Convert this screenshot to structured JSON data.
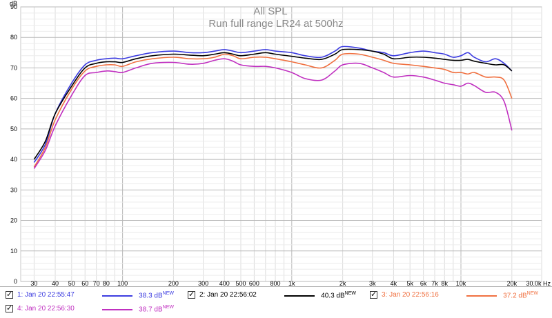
{
  "chart_data": {
    "type": "line",
    "title": "All SPL",
    "subtitle": "Run full range LR24 at 500hz",
    "ylabel": "dB",
    "xlabel": "Hz",
    "x_scale": "log",
    "xlim": [
      25,
      30000
    ],
    "ylim": [
      0,
      90
    ],
    "grid": true,
    "y_ticks": [
      "0",
      "10",
      "20",
      "30",
      "40",
      "50",
      "60",
      "70",
      "80",
      "90"
    ],
    "x_ticks": [
      {
        "v": 30,
        "label": "30"
      },
      {
        "v": 40,
        "label": "40"
      },
      {
        "v": 50,
        "label": "50"
      },
      {
        "v": 60,
        "label": "60"
      },
      {
        "v": 70,
        "label": "70"
      },
      {
        "v": 80,
        "label": "80"
      },
      {
        "v": 100,
        "label": "100"
      },
      {
        "v": 200,
        "label": "200"
      },
      {
        "v": 300,
        "label": "300"
      },
      {
        "v": 400,
        "label": "400"
      },
      {
        "v": 500,
        "label": "500"
      },
      {
        "v": 600,
        "label": "600"
      },
      {
        "v": 800,
        "label": "800"
      },
      {
        "v": 1000,
        "label": "1k"
      },
      {
        "v": 2000,
        "label": "2k"
      },
      {
        "v": 3000,
        "label": "3k"
      },
      {
        "v": 4000,
        "label": "4k"
      },
      {
        "v": 5000,
        "label": "5k"
      },
      {
        "v": 6000,
        "label": "6k"
      },
      {
        "v": 7000,
        "label": "7k"
      },
      {
        "v": 8000,
        "label": "8k"
      },
      {
        "v": 10000,
        "label": "10k"
      },
      {
        "v": 20000,
        "label": "20k"
      },
      {
        "v": 30000,
        "label": "30.0k Hz"
      }
    ],
    "x": [
      30,
      35,
      40,
      50,
      60,
      70,
      80,
      90,
      100,
      120,
      150,
      200,
      250,
      300,
      350,
      400,
      450,
      500,
      600,
      700,
      800,
      1000,
      1200,
      1500,
      1800,
      2000,
      2500,
      3000,
      3500,
      4000,
      5000,
      6000,
      7000,
      8000,
      9000,
      10000,
      11000,
      12000,
      14000,
      16000,
      18000,
      20000
    ],
    "series": [
      {
        "name": "1: Jan 20 22:55:47",
        "color": "#3c3ce0",
        "values": [
          39,
          45,
          55,
          65,
          71,
          72.5,
          73,
          73.2,
          73,
          74,
          75,
          75.5,
          75,
          75,
          75.5,
          76,
          75.5,
          75,
          75.5,
          76,
          75.5,
          75,
          74,
          73.5,
          75.5,
          77,
          76.5,
          75.5,
          75,
          74,
          75,
          75.5,
          75,
          74.5,
          73.5,
          74,
          75,
          73.5,
          72,
          73,
          71.5,
          69
        ]
      },
      {
        "name": "2: Jan 20 22:56:02",
        "color": "#000000",
        "values": [
          40,
          46,
          55,
          64,
          70,
          71.5,
          72,
          72,
          71.8,
          73,
          74,
          74.5,
          74.2,
          74,
          74.5,
          75,
          74.5,
          74,
          74.5,
          75,
          74.5,
          73.8,
          73.2,
          72.8,
          74.5,
          76,
          76,
          75.5,
          74.5,
          73,
          73.5,
          73.5,
          73.2,
          72.8,
          72.5,
          72.5,
          72.8,
          72.2,
          71.5,
          71,
          71,
          69
        ]
      },
      {
        "name": "3: Jan 20 22:56:16",
        "color": "#f07040",
        "values": [
          37.5,
          44,
          53,
          63,
          69,
          70.5,
          71,
          71,
          70.5,
          72,
          73,
          73.5,
          73,
          73,
          73.5,
          74.5,
          74,
          73,
          73.5,
          73.5,
          73,
          72,
          71,
          70,
          72.5,
          74.5,
          74.5,
          73.5,
          72.5,
          71.5,
          71,
          70.5,
          70,
          69.5,
          68.5,
          68.5,
          68,
          68.5,
          67,
          67,
          66,
          60
        ]
      },
      {
        "name": "4: Jan 20 22:56:30",
        "color": "#c030c0",
        "values": [
          37,
          43,
          51,
          61,
          67.5,
          68.5,
          69,
          68.8,
          68.5,
          70,
          71.5,
          71.8,
          71.2,
          71.5,
          72.5,
          73,
          72.2,
          71,
          70.5,
          70.5,
          70,
          68.5,
          66.5,
          66,
          69,
          71,
          71.5,
          70,
          68.5,
          67,
          67.5,
          67,
          66,
          65,
          64.5,
          64,
          65,
          64.2,
          62,
          62,
          59,
          49.5
        ]
      }
    ]
  },
  "legend": [
    {
      "name": "1: Jan 20 22:55:47",
      "value": "38.3 dB",
      "badge": "NEW",
      "color": "#3c3ce0",
      "text_color": "#3c3ce0"
    },
    {
      "name": "2: Jan 20 22:56:02",
      "value": "40.3 dB",
      "badge": "NEW",
      "color": "#000000",
      "text_color": "#000000"
    },
    {
      "name": "3: Jan 20 22:56:16",
      "value": "37.2 dB",
      "badge": "NEW",
      "color": "#f07040",
      "text_color": "#f07040"
    },
    {
      "name": "4: Jan 20 22:56:30",
      "value": "38.7 dB",
      "badge": "NEW",
      "color": "#c030c0",
      "text_color": "#c030c0"
    }
  ]
}
